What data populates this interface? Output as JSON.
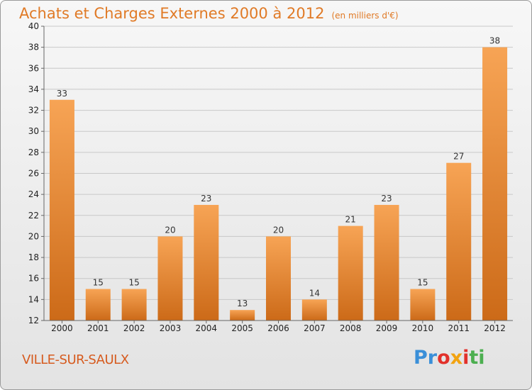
{
  "header": {
    "title": "Achats et Charges Externes 2000 à 2012",
    "unit": "(en milliers d'€)"
  },
  "footer": {
    "commune": "VILLE-SUR-SAULX",
    "logo_text": "Proxiti",
    "logo_colors": [
      "#3a8fd8",
      "#3a8fd8",
      "#e2312b",
      "#f2a311",
      "#e2312b",
      "#4caf50",
      "#4caf50"
    ]
  },
  "colors": {
    "bar_light": "#f7a455",
    "bar_dark": "#cc6a18",
    "grid": "#c8c8c8",
    "title": "#e07a26"
  },
  "chart_data": {
    "type": "bar",
    "title": "Achats et Charges Externes 2000 à 2012",
    "subtitle": "(en milliers d'€)",
    "xlabel": "",
    "ylabel": "",
    "categories": [
      "2000",
      "2001",
      "2002",
      "2003",
      "2004",
      "2005",
      "2006",
      "2007",
      "2008",
      "2009",
      "2010",
      "2011",
      "2012"
    ],
    "values": [
      33,
      15,
      15,
      20,
      23,
      13,
      20,
      14,
      21,
      23,
      15,
      27,
      38
    ],
    "ylim": [
      12,
      40
    ],
    "yticks": [
      12,
      14,
      16,
      18,
      20,
      22,
      24,
      26,
      28,
      30,
      32,
      34,
      36,
      38,
      40
    ],
    "grid": true,
    "data_labels": true
  }
}
